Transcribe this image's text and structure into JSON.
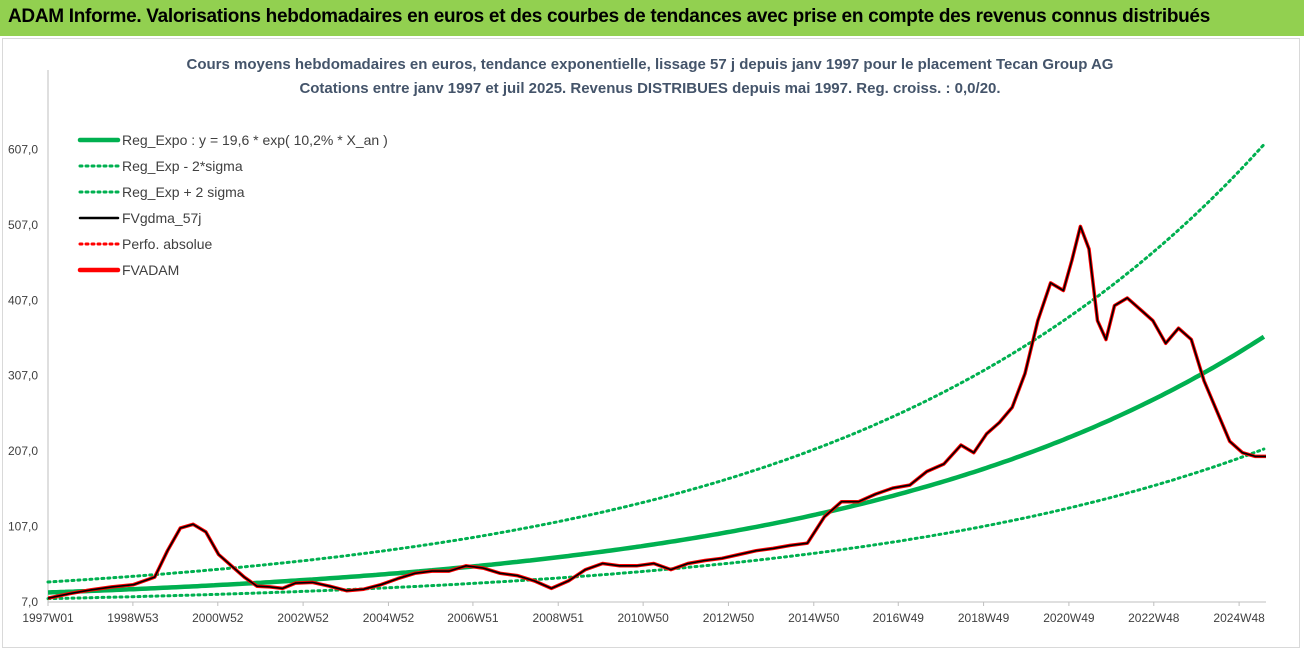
{
  "banner": {
    "title": "ADAM Informe. Valorisations hebdomadaires en euros et des courbes de tendances avec prise en compte des revenus connus distribués",
    "color": "#92d050"
  },
  "chart_data": {
    "type": "line",
    "title_line1": "Cours moyens hebdomadaires en euros, tendance exponentielle, lissage 57 j depuis janv 1997 pour le placement Tecan Group AG",
    "title_line2": "Cotations entre janv 1997 et juil 2025. Revenus DISTRIBUES depuis mai 1997. Reg. croiss. : 0,0/20.",
    "x_tick_labels": [
      "1997W01",
      "1998W53",
      "2000W52",
      "2002W52",
      "2004W52",
      "2006W51",
      "2008W51",
      "2010W50",
      "2012W50",
      "2014W50",
      "2016W49",
      "2018W49",
      "2020W49",
      "2022W48",
      "2024W48"
    ],
    "x_tick_years": [
      1997.0,
      1998.99,
      2000.98,
      2002.98,
      2004.98,
      2006.96,
      2008.96,
      2010.95,
      2012.95,
      2014.95,
      2016.93,
      2018.93,
      2020.93,
      2022.92,
      2024.92
    ],
    "xlim": [
      1997.0,
      2025.55
    ],
    "y_tick_labels": [
      "7,0",
      "107,0",
      "207,0",
      "307,0",
      "407,0",
      "507,0",
      "607,0"
    ],
    "y_ticks": [
      7,
      107,
      207,
      307,
      407,
      507,
      607
    ],
    "ylim": [
      7,
      707
    ],
    "grid": false,
    "legend_position": "top-left",
    "regression": {
      "a": 19.6,
      "rate": 0.102,
      "sigma_factor": 1.71
    },
    "series": [
      {
        "name": "Reg_Expo : y = 19,6 * exp( 10,2% *  X_an )",
        "color": "#00b050",
        "style": "solid-thick"
      },
      {
        "name": "Reg_Exp - 2*sigma",
        "color": "#00b050",
        "style": "dotted"
      },
      {
        "name": "Reg_Exp + 2 sigma",
        "color": "#00b050",
        "style": "dotted"
      },
      {
        "name": "FVgdma_57j",
        "color": "#000000",
        "style": "solid",
        "x": [
          1997.0,
          1997.5,
          1998.0,
          1998.5,
          1999.0,
          1999.5,
          1999.8,
          2000.1,
          2000.4,
          2000.7,
          2001.0,
          2001.3,
          2001.6,
          2001.9,
          2002.2,
          2002.5,
          2002.8,
          2003.2,
          2003.6,
          2004.0,
          2004.4,
          2004.8,
          2005.2,
          2005.6,
          2006.0,
          2006.4,
          2006.8,
          2007.2,
          2007.6,
          2008.0,
          2008.4,
          2008.8,
          2009.2,
          2009.6,
          2010.0,
          2010.4,
          2010.8,
          2011.2,
          2011.6,
          2012.0,
          2012.4,
          2012.8,
          2013.2,
          2013.6,
          2014.0,
          2014.4,
          2014.8,
          2015.2,
          2015.6,
          2016.0,
          2016.4,
          2016.8,
          2017.2,
          2017.6,
          2018.0,
          2018.4,
          2018.7,
          2019.0,
          2019.3,
          2019.6,
          2019.9,
          2020.2,
          2020.5,
          2020.8,
          2021.0,
          2021.2,
          2021.4,
          2021.6,
          2021.8,
          2022.0,
          2022.3,
          2022.6,
          2022.9,
          2023.2,
          2023.5,
          2023.8,
          2024.1,
          2024.4,
          2024.7,
          2025.0,
          2025.3,
          2025.55
        ],
        "values": [
          12,
          18,
          23,
          27,
          30,
          40,
          75,
          105,
          110,
          100,
          70,
          55,
          40,
          28,
          27,
          25,
          32,
          33,
          28,
          22,
          24,
          30,
          38,
          45,
          48,
          48,
          55,
          52,
          45,
          42,
          35,
          25,
          35,
          50,
          58,
          55,
          55,
          58,
          50,
          58,
          62,
          65,
          70,
          75,
          78,
          82,
          85,
          120,
          140,
          140,
          150,
          158,
          162,
          180,
          190,
          215,
          205,
          230,
          245,
          265,
          310,
          380,
          430,
          420,
          460,
          505,
          475,
          380,
          355,
          400,
          410,
          395,
          380,
          350,
          370,
          355,
          300,
          260,
          220,
          205,
          200,
          200
        ]
      },
      {
        "name": "Perfo. absolue",
        "color": "#ff0000",
        "style": "dotted"
      },
      {
        "name": "FVADAM",
        "color": "#ff0000",
        "style": "solid-thick",
        "x": [
          1997.0,
          1997.5,
          1998.0,
          1998.5,
          1999.0,
          1999.5,
          1999.8,
          2000.1,
          2000.4,
          2000.7,
          2001.0,
          2001.3,
          2001.6,
          2001.9,
          2002.2,
          2002.5,
          2002.8,
          2003.2,
          2003.6,
          2004.0,
          2004.4,
          2004.8,
          2005.2,
          2005.6,
          2006.0,
          2006.4,
          2006.8,
          2007.2,
          2007.6,
          2008.0,
          2008.4,
          2008.8,
          2009.2,
          2009.6,
          2010.0,
          2010.4,
          2010.8,
          2011.2,
          2011.6,
          2012.0,
          2012.4,
          2012.8,
          2013.2,
          2013.6,
          2014.0,
          2014.4,
          2014.8,
          2015.2,
          2015.6,
          2016.0,
          2016.4,
          2016.8,
          2017.2,
          2017.6,
          2018.0,
          2018.4,
          2018.7,
          2019.0,
          2019.3,
          2019.6,
          2019.9,
          2020.2,
          2020.5,
          2020.8,
          2021.0,
          2021.2,
          2021.4,
          2021.6,
          2021.8,
          2022.0,
          2022.3,
          2022.6,
          2022.9,
          2023.2,
          2023.5,
          2023.8,
          2024.1,
          2024.4,
          2024.7,
          2025.0,
          2025.3,
          2025.55
        ],
        "values": [
          12,
          18,
          23,
          27,
          30,
          40,
          75,
          105,
          110,
          100,
          70,
          55,
          40,
          28,
          27,
          25,
          32,
          33,
          28,
          22,
          24,
          30,
          38,
          45,
          48,
          48,
          55,
          52,
          45,
          42,
          35,
          25,
          35,
          50,
          58,
          55,
          55,
          58,
          50,
          58,
          62,
          65,
          70,
          75,
          78,
          82,
          85,
          120,
          140,
          140,
          150,
          158,
          162,
          180,
          190,
          215,
          205,
          230,
          245,
          265,
          310,
          380,
          430,
          420,
          460,
          505,
          475,
          380,
          355,
          400,
          410,
          395,
          380,
          350,
          370,
          355,
          300,
          260,
          220,
          205,
          200,
          200
        ]
      }
    ]
  }
}
